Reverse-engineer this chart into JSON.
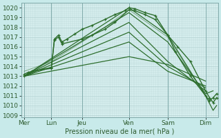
{
  "background_color": "#c8eaea",
  "plot_bg_color": "#d8f0f0",
  "grid_color": "#a8c8c8",
  "line_color": "#2d6e2d",
  "marker_color": "#2d6e2d",
  "xlabel": "Pression niveau de la mer( hPa )",
  "ylim": [
    1009,
    1020.5
  ],
  "yticks": [
    1009,
    1010,
    1011,
    1012,
    1013,
    1014,
    1015,
    1016,
    1017,
    1018,
    1019,
    1020
  ],
  "xtick_labels": [
    "Mer",
    "Lun",
    "Jeu",
    "Ven",
    "Sam",
    "Dim"
  ],
  "xtick_positions": [
    0,
    0.54,
    1.15,
    2.08,
    2.85,
    3.6
  ],
  "vline_positions": [
    0,
    0.54,
    1.15,
    2.08,
    2.85,
    3.6
  ],
  "xlim": [
    -0.05,
    3.85
  ],
  "lines": [
    {
      "x": [
        0.0,
        0.08,
        0.15,
        0.54,
        0.6,
        0.68,
        0.75,
        0.85,
        1.0,
        1.15,
        1.35,
        1.6,
        1.8,
        2.0,
        2.08,
        2.2,
        2.4,
        2.6,
        2.85,
        3.05,
        3.3,
        3.6,
        3.68,
        3.75,
        3.82
      ],
      "y": [
        1013.0,
        1013.3,
        1013.5,
        1013.8,
        1016.8,
        1017.2,
        1016.5,
        1016.8,
        1017.3,
        1017.8,
        1018.2,
        1018.8,
        1019.3,
        1019.7,
        1020.0,
        1019.9,
        1019.5,
        1019.2,
        1017.2,
        1016.0,
        1014.5,
        1011.5,
        1010.8,
        1010.3,
        1010.8
      ],
      "marker": true,
      "lw": 1.0
    },
    {
      "x": [
        0.0,
        2.08,
        2.85,
        3.6,
        3.75,
        3.82
      ],
      "y": [
        1013.0,
        1020.0,
        1017.2,
        1011.0,
        1009.5,
        1010.0
      ],
      "marker": false,
      "lw": 0.9
    },
    {
      "x": [
        0.0,
        2.08,
        2.85,
        3.6,
        3.75
      ],
      "y": [
        1013.0,
        1019.5,
        1016.5,
        1011.2,
        1011.5
      ],
      "marker": false,
      "lw": 0.9
    },
    {
      "x": [
        0.0,
        2.08,
        2.85,
        3.6
      ],
      "y": [
        1013.0,
        1018.5,
        1014.5,
        1011.5
      ],
      "marker": false,
      "lw": 0.9
    },
    {
      "x": [
        0.0,
        2.08,
        2.85,
        3.6
      ],
      "y": [
        1013.0,
        1017.5,
        1014.0,
        1011.8
      ],
      "marker": false,
      "lw": 0.9
    },
    {
      "x": [
        0.0,
        2.08,
        2.85,
        3.6
      ],
      "y": [
        1013.0,
        1016.5,
        1013.5,
        1012.0
      ],
      "marker": false,
      "lw": 0.9
    },
    {
      "x": [
        0.0,
        2.08,
        2.85,
        3.6
      ],
      "y": [
        1013.0,
        1015.0,
        1014.2,
        1012.5
      ],
      "marker": false,
      "lw": 0.9
    },
    {
      "x": [
        0.0,
        0.08,
        0.54,
        0.6,
        0.68,
        0.75,
        1.15,
        1.35,
        1.6,
        1.8,
        2.08,
        2.2,
        2.4,
        2.6,
        2.85,
        3.0,
        3.3,
        3.6,
        3.68,
        3.75,
        3.82
      ],
      "y": [
        1013.2,
        1013.4,
        1013.9,
        1016.7,
        1017.0,
        1016.3,
        1016.8,
        1017.2,
        1017.8,
        1018.5,
        1019.8,
        1019.7,
        1019.3,
        1018.8,
        1017.2,
        1015.5,
        1013.0,
        1011.0,
        1010.5,
        1010.8,
        1011.2
      ],
      "marker": true,
      "lw": 1.0
    },
    {
      "x": [
        0.0,
        0.54,
        1.15,
        1.6,
        2.08,
        2.85,
        3.6
      ],
      "y": [
        1013.5,
        1014.5,
        1016.5,
        1018.0,
        1019.8,
        1017.0,
        1011.0
      ],
      "marker": false,
      "lw": 0.6,
      "alpha": 0.6
    }
  ]
}
